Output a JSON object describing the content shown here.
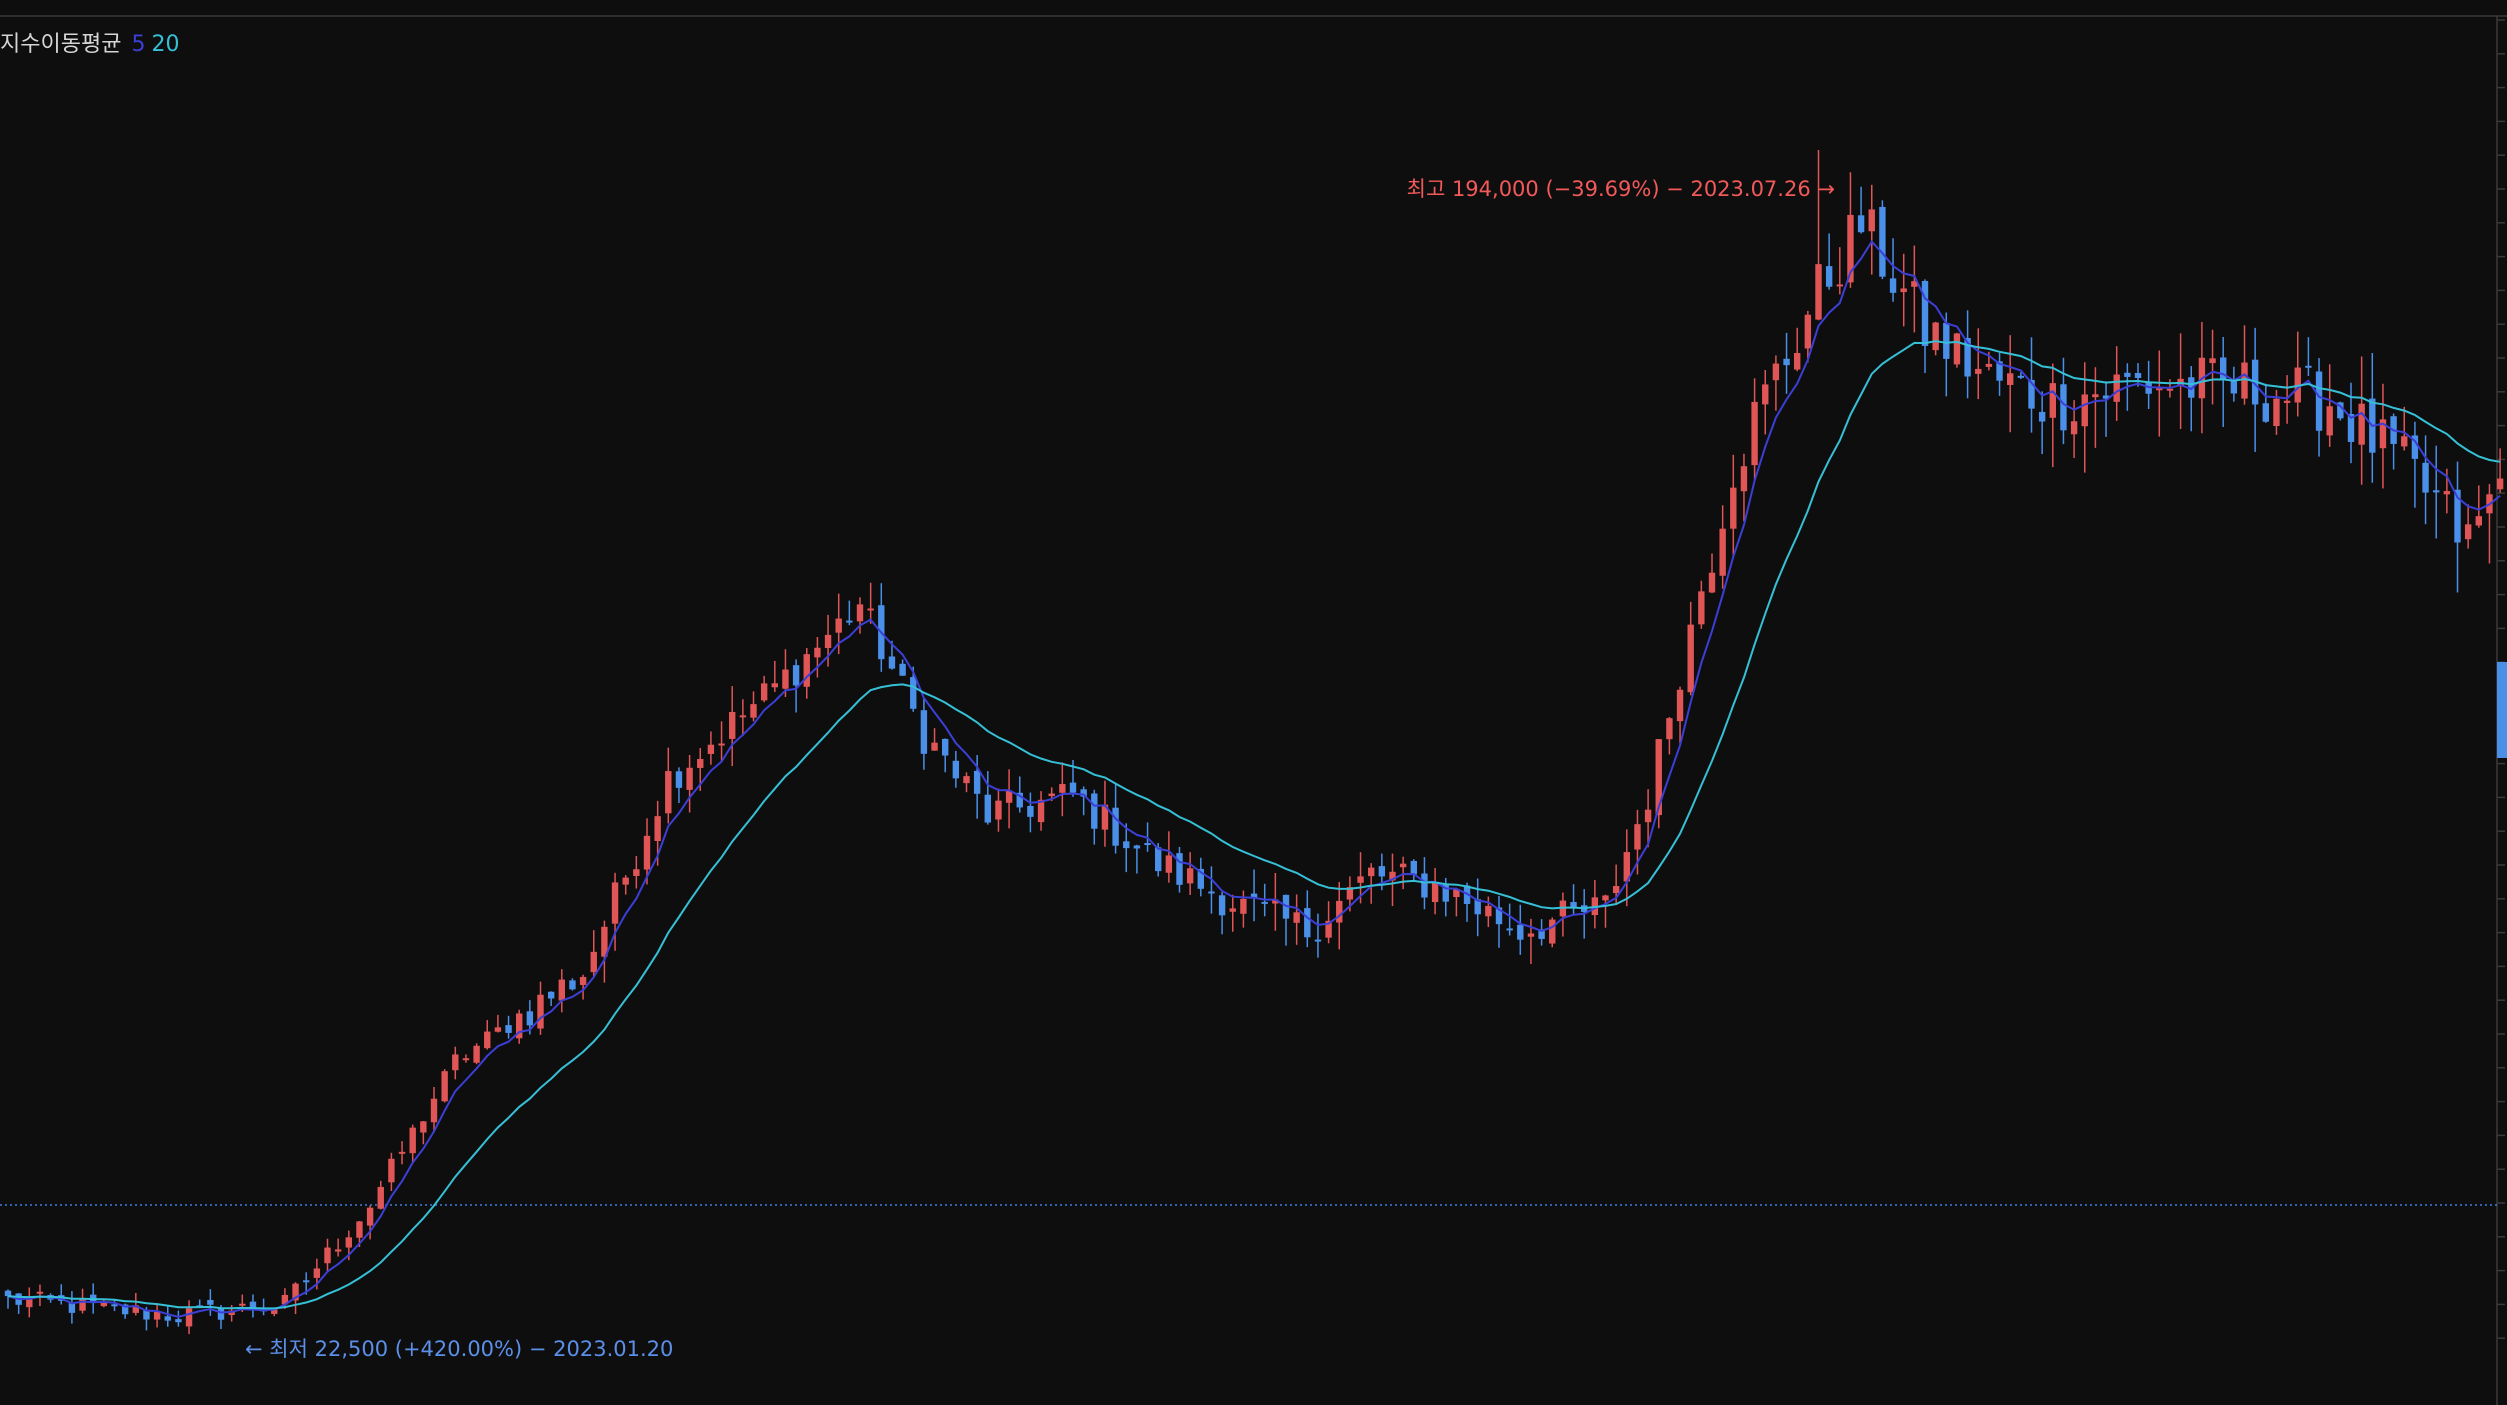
{
  "legend": {
    "title": "지수이동평균",
    "ma_short": "5",
    "ma_long": "20"
  },
  "colors": {
    "background": "#0e0e0f",
    "up": "#e05555",
    "down": "#4a8fe8",
    "ma5": "#3b3fd6",
    "ma20": "#36c0d6",
    "ref_line": "#3f7fe0"
  },
  "annotations": {
    "high_label": "최고 194,000 (−39.69%) − 2023.07.26",
    "low_label": "최저 22,500 (+420.00%) − 2023.01.20",
    "arrow_right": "→",
    "arrow_left": "←"
  },
  "chart_data": {
    "type": "candlestick",
    "y_scale": "log",
    "ylim": [
      18000,
      230000
    ],
    "reference_price": 28500,
    "high": {
      "value": 194000,
      "date": "2023.07.26",
      "change": "−39.69%"
    },
    "low": {
      "value": 22500,
      "date": "2023.01.20",
      "change": "+420.00%"
    },
    "series": [
      {
        "name": "5",
        "kind": "ema"
      },
      {
        "name": "20",
        "kind": "ema"
      }
    ],
    "close_waypoints": [
      [
        0,
        24000
      ],
      [
        16,
        23300
      ],
      [
        26,
        23800
      ],
      [
        34,
        28500
      ],
      [
        42,
        37000
      ],
      [
        54,
        43500
      ],
      [
        62,
        62000
      ],
      [
        72,
        73000
      ],
      [
        80,
        85000
      ],
      [
        86,
        67000
      ],
      [
        92,
        58000
      ],
      [
        100,
        60000
      ],
      [
        108,
        53000
      ],
      [
        116,
        49000
      ],
      [
        122,
        47000
      ],
      [
        128,
        52000
      ],
      [
        134,
        51000
      ],
      [
        142,
        47000
      ],
      [
        150,
        49000
      ],
      [
        154,
        60000
      ],
      [
        162,
        110000
      ],
      [
        170,
        150000
      ],
      [
        174,
        170000
      ],
      [
        180,
        140000
      ],
      [
        186,
        128000
      ],
      [
        192,
        123000
      ],
      [
        200,
        127000
      ],
      [
        210,
        126000
      ],
      [
        218,
        123000
      ],
      [
        226,
        107000
      ],
      [
        231,
        95000
      ],
      [
        234,
        106000
      ]
    ],
    "spikes": [
      {
        "index": 170,
        "high": 194000
      }
    ]
  }
}
